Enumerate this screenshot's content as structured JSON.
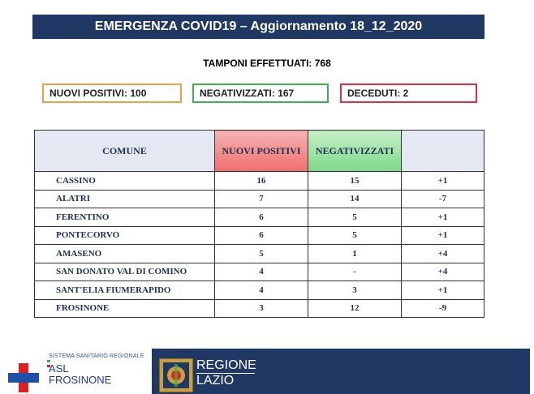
{
  "header": {
    "title": "EMERGENZA COVID19 – Aggiornamento 18_12_2020"
  },
  "tamponi": "TAMPONI EFFETTUATI: 768",
  "boxes": {
    "positivi": "NUOVI POSITIVI: 100",
    "negativizzati": "NEGATIVIZZATI: 167",
    "deceduti": "DECEDUTI: 2"
  },
  "colors": {
    "positivi": "#f0a040",
    "negativizzati": "#3bb34a",
    "deceduti": "#e0303c",
    "header_bg": "#1f3864"
  },
  "table": {
    "headers": [
      "COMUNE",
      "NUOVI POSITIVI",
      "NEGATIVIZZATI",
      ""
    ],
    "rows": [
      [
        "CASSINO",
        "16",
        "15",
        "+1"
      ],
      [
        "ALATRI",
        "7",
        "14",
        "-7"
      ],
      [
        "FERENTINO",
        "6",
        "5",
        "+1"
      ],
      [
        "PONTECORVO",
        "6",
        "5",
        "+1"
      ],
      [
        "AMASENO",
        "5",
        "1",
        "+4"
      ],
      [
        "SAN DONATO VAL DI COMINO",
        "4",
        "-",
        "+4"
      ],
      [
        "SANT'ELIA FIUMERAPIDO",
        "4",
        "3",
        "+1"
      ],
      [
        "FROSINONE",
        "3",
        "12",
        "-9"
      ]
    ]
  },
  "footer": {
    "asl_small": "SISTEMA SANITARIO REGIONALE",
    "asl_line1": "ASL",
    "asl_line2": "FROSINONE",
    "region_line1": "REGIONE",
    "region_line2": "LAZIO"
  }
}
